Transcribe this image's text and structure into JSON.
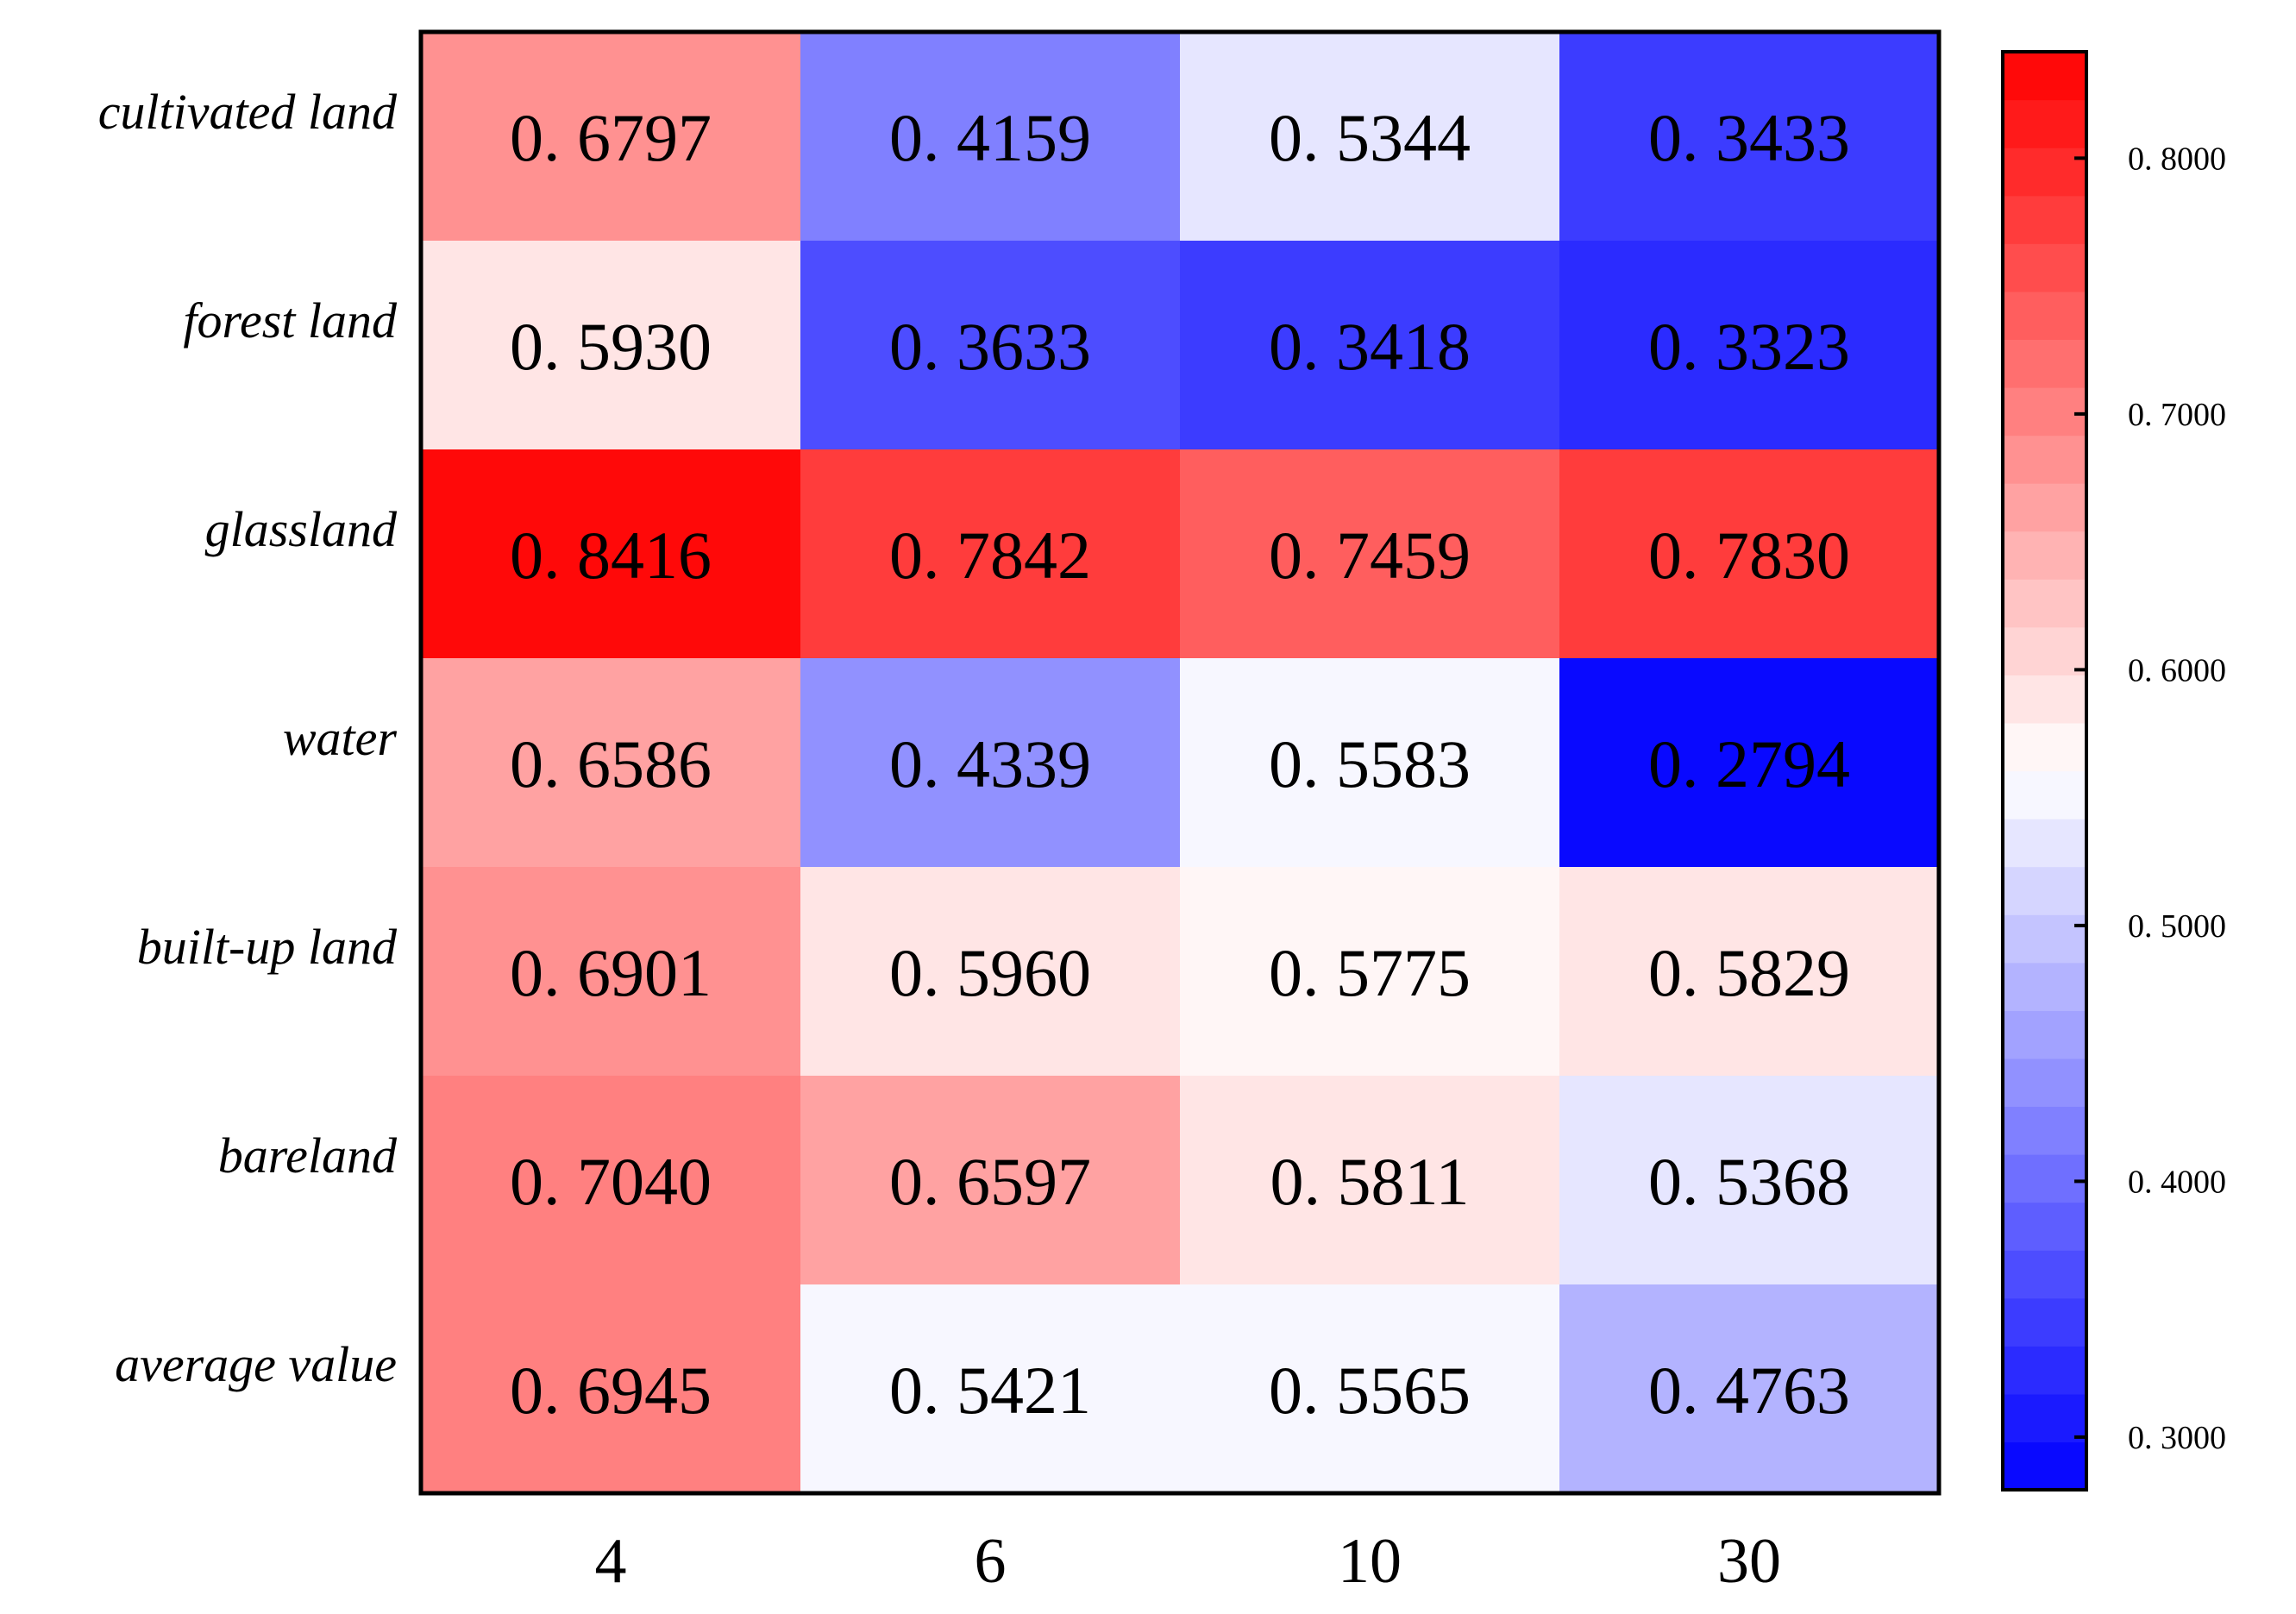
{
  "chart_data": {
    "type": "heatmap",
    "title": "",
    "xlabel": "",
    "ylabel": "",
    "x_categories": [
      "4",
      "6",
      "10",
      "30"
    ],
    "y_categories": [
      "cultivated land",
      "forest land",
      "glassland",
      "water",
      "built-up land",
      "bareland",
      "average value"
    ],
    "values": [
      [
        0.6797,
        0.4159,
        0.5344,
        0.3433
      ],
      [
        0.593,
        0.3633,
        0.3418,
        0.3323
      ],
      [
        0.8416,
        0.7842,
        0.7459,
        0.783
      ],
      [
        0.6586,
        0.4339,
        0.5583,
        0.2794
      ],
      [
        0.6901,
        0.596,
        0.5775,
        0.5829
      ],
      [
        0.704,
        0.6597,
        0.5811,
        0.5368
      ],
      [
        0.6945,
        0.5421,
        0.5565,
        0.4763
      ]
    ],
    "value_labels": [
      [
        "0. 6797",
        "0. 4159",
        "0. 5344",
        "0. 3433"
      ],
      [
        "0. 5930",
        "0. 3633",
        "0. 3418",
        "0. 3323"
      ],
      [
        "0. 8416",
        "0. 7842",
        "0. 7459",
        "0. 7830"
      ],
      [
        "0. 6586",
        "0. 4339",
        "0. 5583",
        "0. 2794"
      ],
      [
        "0. 6901",
        "0. 5960",
        "0. 5775",
        "0. 5829"
      ],
      [
        "0. 7040",
        "0. 6597",
        "0. 5811",
        "0. 5368"
      ],
      [
        "0. 6945",
        "0. 5421",
        "0. 5565",
        "0. 4763"
      ]
    ],
    "colorbar": {
      "colormap": "bwr",
      "levels": 30,
      "range": [
        0.2794,
        0.8416
      ],
      "ticks": [
        0.3,
        0.4,
        0.5,
        0.6,
        0.7,
        0.8
      ],
      "tick_labels": [
        "0. 3000",
        "0. 4000",
        "0. 5000",
        "0. 6000",
        "0. 7000",
        "0. 8000"
      ],
      "low_color": "#0000ff",
      "mid_color": "#ffffff",
      "high_color": "#ff0000"
    },
    "grid": false,
    "legend": "colorbar-right"
  }
}
